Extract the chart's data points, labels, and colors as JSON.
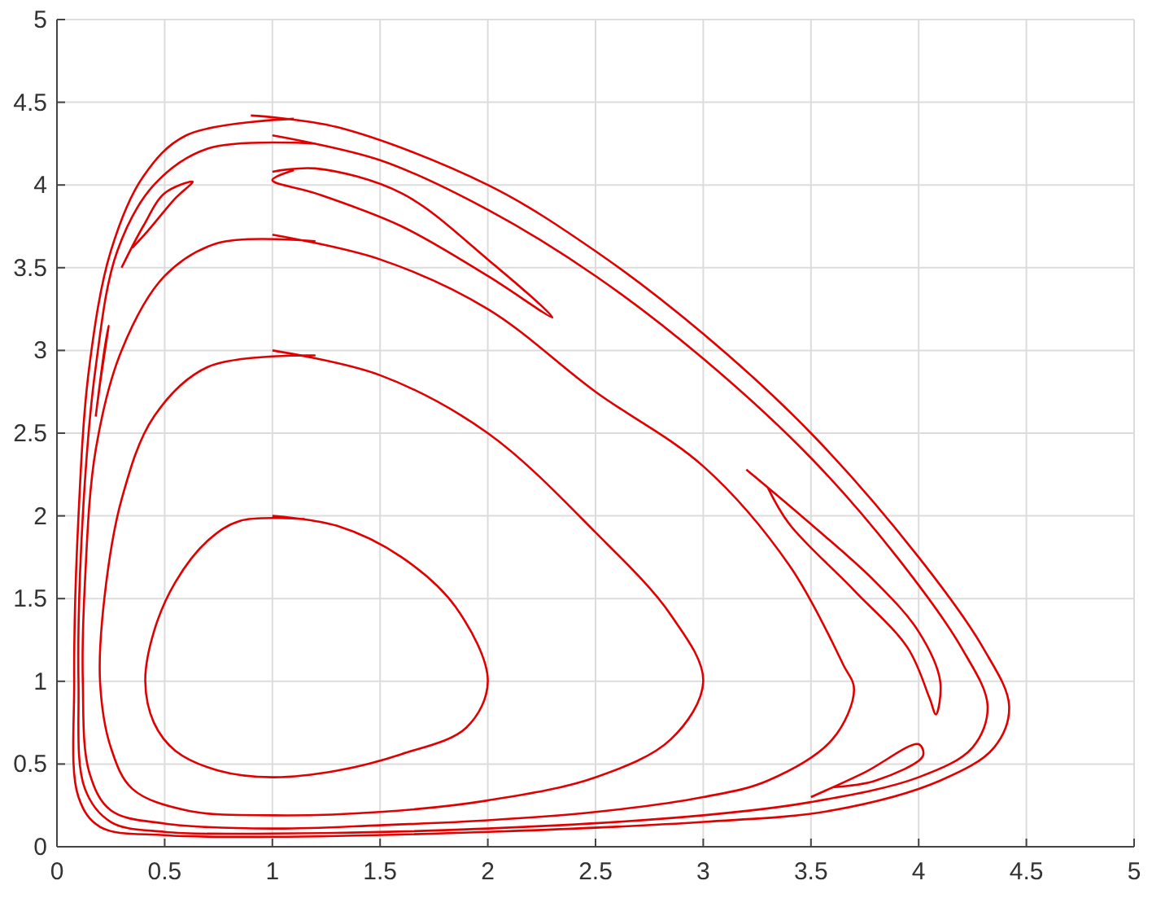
{
  "chart_data": {
    "type": "line",
    "xlim": [
      0,
      5
    ],
    "ylim": [
      0,
      5
    ],
    "xticks": [
      0,
      0.5,
      1,
      1.5,
      2,
      2.5,
      3,
      3.5,
      4,
      4.5,
      5
    ],
    "yticks": [
      0,
      0.5,
      1,
      1.5,
      2,
      2.5,
      3,
      3.5,
      4,
      4.5,
      5
    ],
    "grid": true,
    "marker": "none",
    "line_style": "solid",
    "series": [
      {
        "color": "#e00000",
        "x": [
          1,
          1.3,
          1.6,
          1.85,
          2,
          1.9,
          1.6,
          1.3,
          1,
          0.75,
          0.55,
          0.45,
          0.41,
          0.45,
          0.55,
          0.7,
          0.85,
          1.15
        ],
        "values": [
          2,
          1.94,
          1.75,
          1.45,
          1,
          0.72,
          0.56,
          0.46,
          0.42,
          0.46,
          0.58,
          0.75,
          1,
          1.3,
          1.6,
          1.85,
          1.97,
          1.98
        ]
      },
      {
        "color": "#e00000",
        "x": [
          1,
          1.5,
          2,
          2.5,
          2.85,
          3,
          2.85,
          2.5,
          2,
          1.5,
          1,
          0.6,
          0.35,
          0.25,
          0.2,
          0.22,
          0.3,
          0.45,
          0.7,
          1.2
        ],
        "values": [
          3,
          2.85,
          2.5,
          1.9,
          1.4,
          1,
          0.65,
          0.42,
          0.28,
          0.21,
          0.19,
          0.22,
          0.35,
          0.6,
          1,
          1.5,
          2.1,
          2.6,
          2.9,
          2.97
        ]
      },
      {
        "color": "#e00000",
        "x": [
          1,
          1.5,
          2,
          2.5,
          3,
          3.4,
          3.65,
          3.7,
          3.6,
          3.3,
          3,
          2.5,
          2,
          1.5,
          1,
          0.5,
          0.25,
          0.15,
          0.12,
          0.13,
          0.18,
          0.3,
          0.5,
          0.75,
          1.2
        ],
        "values": [
          3.7,
          3.55,
          3.25,
          2.75,
          2.3,
          1.7,
          1.1,
          0.95,
          0.65,
          0.4,
          0.3,
          0.21,
          0.16,
          0.13,
          0.11,
          0.14,
          0.22,
          0.45,
          1,
          1.6,
          2.4,
          3,
          3.45,
          3.65,
          3.66
        ]
      },
      {
        "color": "#e00000",
        "x": [
          0.9,
          1.3,
          2,
          2.5,
          3,
          3.5,
          4,
          4.3,
          4.42,
          4.35,
          4.1,
          3.6,
          3,
          2,
          1,
          0.5,
          0.2,
          0.1,
          0.08,
          0.1,
          0.15,
          0.25,
          0.4,
          0.6,
          1.1
        ],
        "values": [
          4.42,
          4.35,
          4,
          3.6,
          3.1,
          2.5,
          1.75,
          1.2,
          0.85,
          0.6,
          0.4,
          0.22,
          0.15,
          0.09,
          0.06,
          0.07,
          0.12,
          0.3,
          1,
          2,
          2.9,
          3.6,
          4.05,
          4.3,
          4.4
        ]
      },
      {
        "color": "#e00000",
        "x": [
          1,
          1.5,
          2,
          2.5,
          3,
          3.5,
          3.9,
          4.2,
          4.32,
          4.25,
          4,
          3.5,
          3,
          2,
          1,
          0.5,
          0.25,
          0.13,
          0.1,
          0.12,
          0.18,
          0.28,
          0.45,
          0.7,
          1.2
        ],
        "values": [
          4.3,
          4.15,
          3.85,
          3.45,
          2.95,
          2.35,
          1.75,
          1.2,
          0.85,
          0.6,
          0.42,
          0.27,
          0.19,
          0.11,
          0.08,
          0.09,
          0.15,
          0.35,
          1,
          2,
          2.9,
          3.6,
          4,
          4.22,
          4.25
        ]
      },
      {
        "color": "#e00000",
        "x": [
          1,
          1.2,
          1.6,
          2,
          2.3,
          2,
          1.6,
          1.2,
          1,
          1.1
        ],
        "values": [
          4.08,
          4.1,
          3.95,
          3.55,
          3.2,
          3.45,
          3.75,
          3.95,
          4.03,
          4.09
        ]
      },
      {
        "color": "#e00000",
        "x": [
          3.2,
          3.5,
          3.8,
          4,
          4.1,
          4.08,
          4.05,
          3.95,
          3.7,
          3.4,
          3.3
        ],
        "values": [
          2.28,
          1.95,
          1.6,
          1.3,
          1,
          0.8,
          0.9,
          1.2,
          1.55,
          1.95,
          2.17
        ]
      },
      {
        "color": "#e00000",
        "x": [
          0.3,
          0.4,
          0.5,
          0.63,
          0.55,
          0.42,
          0.35
        ],
        "values": [
          3.5,
          3.75,
          3.95,
          4.02,
          3.92,
          3.72,
          3.62
        ]
      },
      {
        "color": "#e00000",
        "x": [
          3.5,
          3.75,
          4,
          4.02,
          3.8,
          3.6
        ],
        "values": [
          0.3,
          0.45,
          0.62,
          0.55,
          0.4,
          0.36
        ]
      },
      {
        "color": "#e00000",
        "x": [
          0.18,
          0.22,
          0.24,
          0.2,
          0.19
        ],
        "values": [
          2.6,
          3,
          3.15,
          2.8,
          2.7
        ]
      }
    ]
  }
}
